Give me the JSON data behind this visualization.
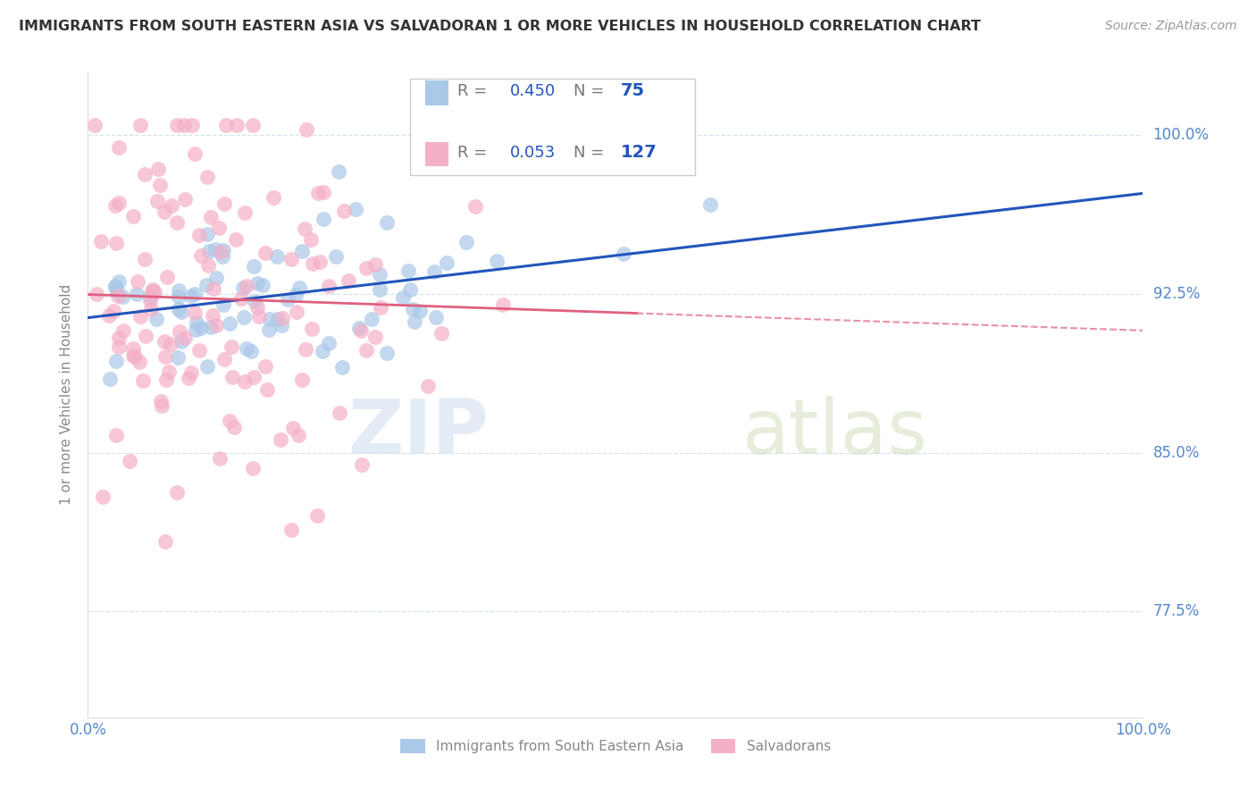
{
  "title": "IMMIGRANTS FROM SOUTH EASTERN ASIA VS SALVADORAN 1 OR MORE VEHICLES IN HOUSEHOLD CORRELATION CHART",
  "source": "Source: ZipAtlas.com",
  "ylabel": "1 or more Vehicles in Household",
  "series1_label": "Immigrants from South Eastern Asia",
  "series2_label": "Salvadorans",
  "series1_R": 0.45,
  "series1_N": 75,
  "series2_R": 0.053,
  "series2_N": 127,
  "series1_color": "#aac8e8",
  "series2_color": "#f4b0c8",
  "series1_line_color": "#2255bb",
  "series2_line_color": "#e06080",
  "axis_label_color": "#5588cc",
  "watermark_color": "#ccddf0",
  "xmin": 0.0,
  "xmax": 1.0,
  "ymin": 0.725,
  "ymax": 1.03,
  "yticks": [
    0.775,
    0.85,
    0.925,
    1.0
  ],
  "ytick_labels": [
    "77.5%",
    "85.0%",
    "92.5%",
    "100.0%"
  ]
}
